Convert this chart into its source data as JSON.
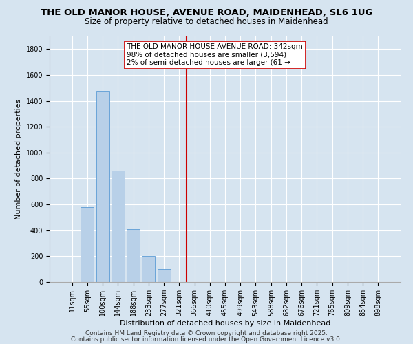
{
  "title": "THE OLD MANOR HOUSE, AVENUE ROAD, MAIDENHEAD, SL6 1UG",
  "subtitle": "Size of property relative to detached houses in Maidenhead",
  "xlabel": "Distribution of detached houses by size in Maidenhead",
  "ylabel": "Number of detached properties",
  "bar_labels": [
    "11sqm",
    "55sqm",
    "100sqm",
    "144sqm",
    "188sqm",
    "233sqm",
    "277sqm",
    "321sqm",
    "366sqm",
    "410sqm",
    "455sqm",
    "499sqm",
    "543sqm",
    "588sqm",
    "632sqm",
    "676sqm",
    "721sqm",
    "765sqm",
    "809sqm",
    "854sqm",
    "898sqm"
  ],
  "bar_values": [
    0,
    580,
    1480,
    860,
    410,
    200,
    100,
    0,
    0,
    0,
    0,
    0,
    0,
    0,
    0,
    0,
    0,
    0,
    0,
    0,
    0
  ],
  "bar_color": "#b8d0e8",
  "bar_edge_color": "#5b9bd5",
  "vline_x_index": 7.5,
  "vline_color": "#cc0000",
  "ylim": [
    0,
    1900
  ],
  "yticks": [
    0,
    200,
    400,
    600,
    800,
    1000,
    1200,
    1400,
    1600,
    1800
  ],
  "annotation_line1": "THE OLD MANOR HOUSE AVENUE ROAD: 342sqm",
  "annotation_line2": "98% of detached houses are smaller (3,594)",
  "annotation_line3": "2% of semi-detached houses are larger (61 →",
  "annotation_box_color": "#ffffff",
  "annotation_border_color": "#cc0000",
  "footnote1": "Contains HM Land Registry data © Crown copyright and database right 2025.",
  "footnote2": "Contains public sector information licensed under the Open Government Licence v3.0.",
  "background_color": "#d6e4f0",
  "plot_background_color": "#d6e4f0",
  "title_fontsize": 9.5,
  "subtitle_fontsize": 8.5,
  "axis_fontsize": 8,
  "tick_fontsize": 7,
  "footnote_fontsize": 6.5,
  "annotation_fontsize": 7.5
}
